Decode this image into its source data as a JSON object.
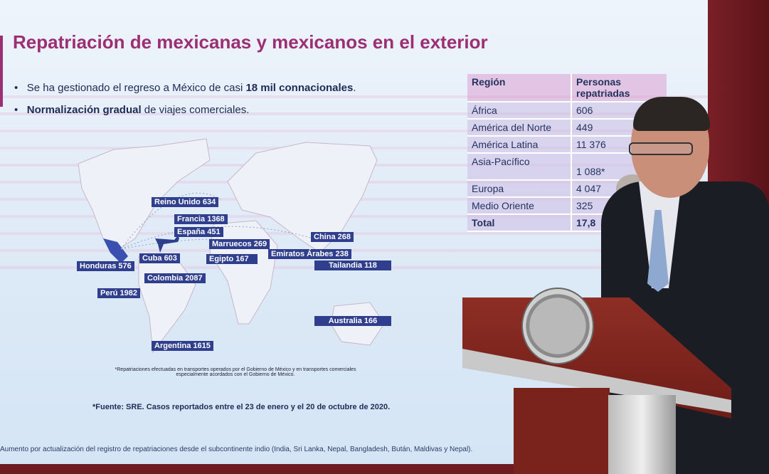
{
  "slide": {
    "title": "Repatriación de mexicanas y mexicanos en el exterior",
    "bullets": [
      {
        "pre": "Se ha gestionado el regreso a México de casi ",
        "bold": "18 mil connacionales",
        "post": "."
      },
      {
        "bold": "Normalización gradual",
        "post": " de viajes comerciales."
      }
    ],
    "map_labels": [
      {
        "name": "Reino Unido",
        "value": "634"
      },
      {
        "name": "Francia",
        "value": "1368"
      },
      {
        "name": "España",
        "value": "451"
      },
      {
        "name": "China",
        "value": "268"
      },
      {
        "name": "Marruecos",
        "value": "269"
      },
      {
        "name": "Emiratos Árabes",
        "value": "238"
      },
      {
        "name": "Egipto",
        "value": "167"
      },
      {
        "name": "Tailandia",
        "value": "118"
      },
      {
        "name": "Cuba",
        "value": "603"
      },
      {
        "name": "Honduras",
        "value": "576"
      },
      {
        "name": "Colombia",
        "value": "2087"
      },
      {
        "name": "Perú",
        "value": "1982"
      },
      {
        "name": "Australia",
        "value": "166"
      },
      {
        "name": "Argentina",
        "value": "1615"
      }
    ],
    "table": {
      "headers": [
        "Región",
        "Personas repatriadas"
      ],
      "rows": [
        [
          "África",
          "606"
        ],
        [
          "América del Norte",
          "449"
        ],
        [
          "América Latina",
          "11 376"
        ],
        [
          "Asia-Pacífico",
          "1 088*"
        ],
        [
          "Europa",
          "4 047"
        ],
        [
          "Medio Oriente",
          "325"
        ],
        [
          "Total",
          "17,8"
        ]
      ]
    },
    "footnote_transport": "*Repatriaciones efectuadas en transportes operados por el Gobierno de México y en transportes comerciales especialmente acordados con el Gobierno de México.",
    "source": "*Fuente: SRE. Casos reportados entre el 23 de enero y el 20 de octubre de 2020.",
    "footnote_asia": "Aumento por actualización del registro de repatriaciones desde el subcontinente indio (India, Sri Lanka, Nepal, Bangladesh, Bután, Maldivas y Nepal).",
    "colors": {
      "title": "#9c2f74",
      "label_bg": "#2f3f8e",
      "text": "#1d2b55"
    }
  }
}
